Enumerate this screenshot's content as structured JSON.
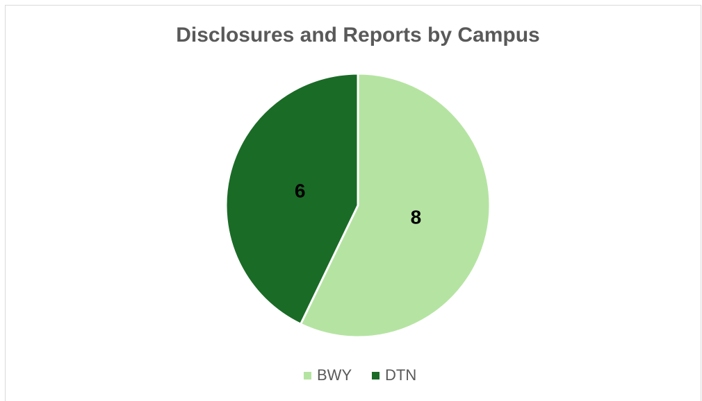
{
  "chart_data": {
    "type": "pie",
    "title": "Disclosures and Reports by Campus",
    "categories": [
      "BWY",
      "DTN"
    ],
    "values": [
      8,
      6
    ],
    "colors": [
      "#b5e4a2",
      "#1a6b26"
    ],
    "legend": "bottom"
  }
}
